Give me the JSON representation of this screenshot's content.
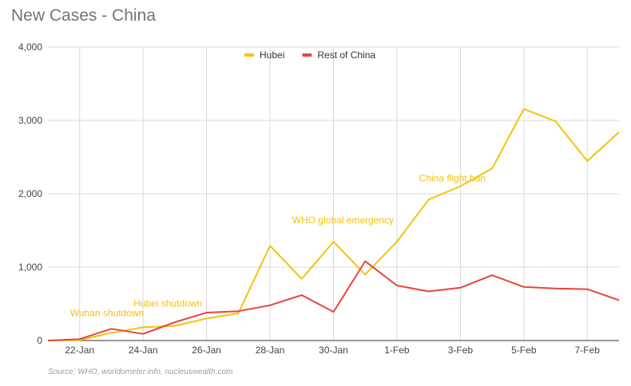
{
  "title": "New Cases - China",
  "source": "Source: WHO, worldometer.info, nucleuswealth.com",
  "colors": {
    "hubei": "#f4c20d",
    "rest": "#e8453c",
    "grid": "#d9d9d9",
    "axis": "#333333"
  },
  "chart_data": {
    "type": "line",
    "title": "New Cases - China",
    "x": [
      "21-Jan",
      "22-Jan",
      "23-Jan",
      "24-Jan",
      "25-Jan",
      "26-Jan",
      "27-Jan",
      "28-Jan",
      "29-Jan",
      "30-Jan",
      "31-Jan",
      "1-Feb",
      "2-Feb",
      "3-Feb",
      "4-Feb",
      "5-Feb",
      "6-Feb",
      "7-Feb",
      "8-Feb"
    ],
    "x_tick_labels": [
      "22-Jan",
      "24-Jan",
      "26-Jan",
      "28-Jan",
      "30-Jan",
      "1-Feb",
      "3-Feb",
      "5-Feb",
      "7-Feb"
    ],
    "y_ticks": [
      0,
      1000,
      2000,
      3000,
      4000
    ],
    "y_tick_labels": [
      "0",
      "1,000",
      "2,000",
      "3,000",
      "4,000"
    ],
    "ylim": [
      0,
      4000
    ],
    "grid": true,
    "legend_position": "top",
    "series": [
      {
        "name": "Hubei",
        "color": "#f4c20d",
        "values": [
          0,
          5,
          105,
          180,
          200,
          300,
          371,
          1291,
          840,
          1347,
          900,
          1347,
          1921,
          2103,
          2345,
          3156,
          2987,
          2447,
          2841
        ]
      },
      {
        "name": "Rest of China",
        "color": "#e8453c",
        "values": [
          0,
          20,
          160,
          90,
          250,
          380,
          400,
          480,
          620,
          390,
          1080,
          750,
          670,
          720,
          890,
          730,
          710,
          700,
          550
        ]
      }
    ],
    "annotations": [
      {
        "text": "Wuhan shutdown",
        "x": "22-Jan",
        "y": 330
      },
      {
        "text": "Hubei shutdown",
        "x": "24-Jan",
        "y": 460
      },
      {
        "text": "WHO global emergency",
        "x": "29-Jan",
        "y": 1600
      },
      {
        "text": "China flight ban",
        "x": "2-Feb",
        "y": 2170
      }
    ]
  }
}
